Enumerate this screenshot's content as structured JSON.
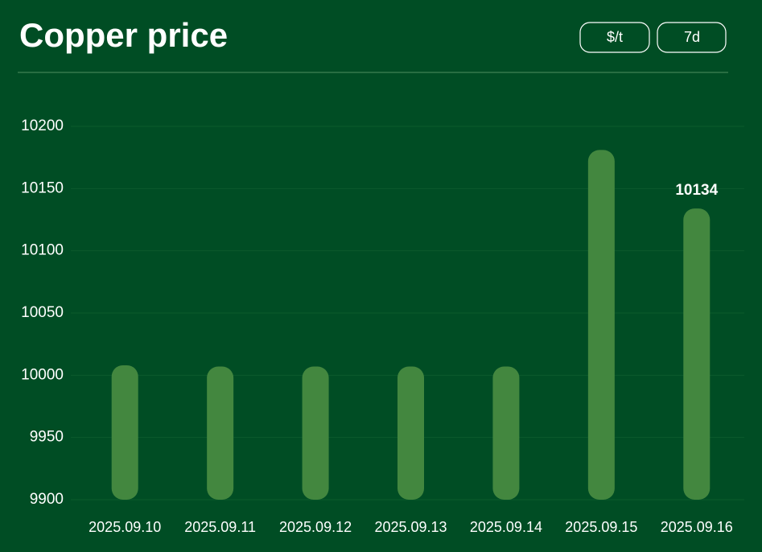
{
  "header": {
    "title": "Copper price",
    "buttons": [
      "$/t",
      "7d"
    ]
  },
  "chart_data": {
    "type": "bar",
    "categories": [
      "2025.09.10",
      "2025.09.11",
      "2025.09.12",
      "2025.09.13",
      "2025.09.14",
      "2025.09.15",
      "2025.09.16"
    ],
    "values": [
      10008,
      10007,
      10007,
      10007,
      10007,
      10181,
      10134
    ],
    "color": "#43873f",
    "ylim": [
      9900,
      10200
    ],
    "yticks": [
      9900,
      9950,
      10000,
      10050,
      10100,
      10150,
      10200
    ],
    "grid": true
  }
}
